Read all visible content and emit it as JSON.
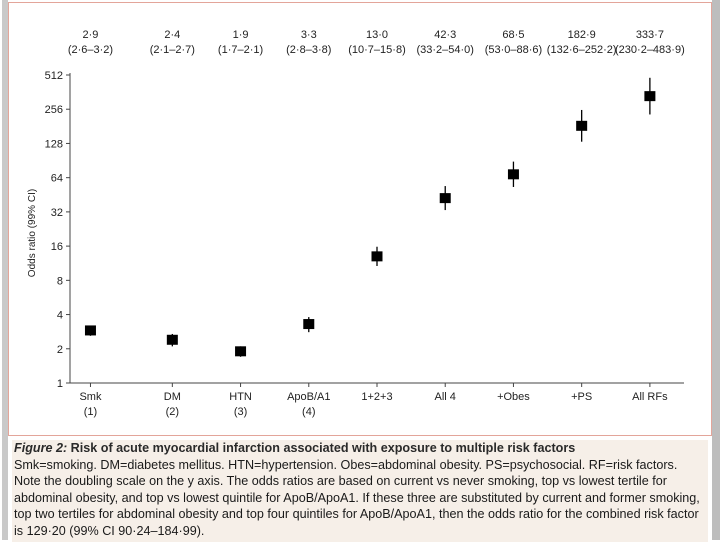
{
  "chart_data": {
    "type": "scatter",
    "title": "",
    "xlabel": "",
    "ylabel": "Odds ratio (99% CI)",
    "yscale": "log2",
    "ylim": [
      1,
      512
    ],
    "yticks": [
      "1",
      "2",
      "4",
      "8",
      "16",
      "32",
      "64",
      "128",
      "256",
      "512"
    ],
    "ytick_values": [
      1,
      2,
      4,
      8,
      16,
      32,
      64,
      128,
      256,
      512
    ],
    "categories": [
      {
        "label": "Smk",
        "sub": "(1)"
      },
      {
        "label": "DM",
        "sub": "(2)"
      },
      {
        "label": "HTN",
        "sub": "(3)"
      },
      {
        "label": "ApoB/A1",
        "sub": "(4)"
      },
      {
        "label": "1+2+3",
        "sub": ""
      },
      {
        "label": "All 4",
        "sub": ""
      },
      {
        "label": "+Obes",
        "sub": ""
      },
      {
        "label": "+PS",
        "sub": ""
      },
      {
        "label": "All RFs",
        "sub": ""
      }
    ],
    "values": [
      2.9,
      2.4,
      1.9,
      3.3,
      13.0,
      42.3,
      68.5,
      182.9,
      333.7
    ],
    "ci_low": [
      2.6,
      2.1,
      1.7,
      2.8,
      10.7,
      33.2,
      53.0,
      132.6,
      230.2
    ],
    "ci_high": [
      3.2,
      2.7,
      2.1,
      3.8,
      15.8,
      54.0,
      88.6,
      252.2,
      483.9
    ],
    "value_labels": [
      "2·9",
      "2·4",
      "1·9",
      "3·3",
      "13·0",
      "42·3",
      "68·5",
      "182·9",
      "333·7"
    ],
    "ci_labels": [
      "(2·6–3·2)",
      "(2·1–2·7)",
      "(1·7–2·1)",
      "(2·8–3·8)",
      "(10·7–15·8)",
      "(33·2–54·0)",
      "(53·0–88·6)",
      "(132·6–252·2)",
      "(230·2–483·9)"
    ]
  },
  "caption": {
    "figure_label": "Figure 2:",
    "figure_title": " Risk of acute myocardial infarction associated with exposure to multiple risk factors",
    "body": "Smk=smoking. DM=diabetes mellitus. HTN=hypertension. Obes=abdominal obesity. PS=psychosocial. RF=risk factors.  Note the doubling scale on the y axis. The odds ratios are based on current vs never smoking, top vs lowest tertile for abdominal obesity, and top vs lowest quintile for ApoB/ApoA1. If these three are substituted by current and former smoking, top two tertiles for abdominal obesity and top four quintiles for ApoB/ApoA1, then the odds ratio for the combined risk factor is 129·20 (99% CI 90·24–184·99)."
  },
  "colors": {
    "marker": "#000000",
    "axis": "#444444",
    "panel_border": "#e3a59a",
    "caption_bg": "#f6efe8"
  }
}
